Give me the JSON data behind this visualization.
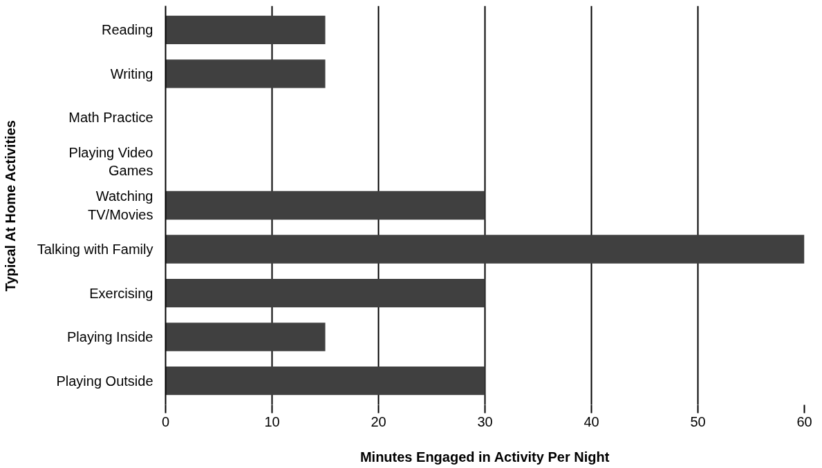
{
  "chart_data": {
    "type": "bar",
    "orientation": "horizontal",
    "xlabel": "Minutes Engaged in Activity Per Night",
    "ylabel": "Typical At Home Activities",
    "categories": [
      "Reading",
      "Writing",
      "Math Practice",
      "Playing Video\nGames",
      "Watching\nTV/Movies",
      "Talking with Family",
      "Exercising",
      "Playing Inside",
      "Playing Outside"
    ],
    "values": [
      15,
      15,
      0,
      0,
      30,
      60,
      30,
      15,
      30
    ],
    "color": "#404040",
    "xlim": [
      0,
      60
    ],
    "xticks": [
      0,
      10,
      20,
      30,
      40,
      50,
      60
    ],
    "grid": "x"
  }
}
